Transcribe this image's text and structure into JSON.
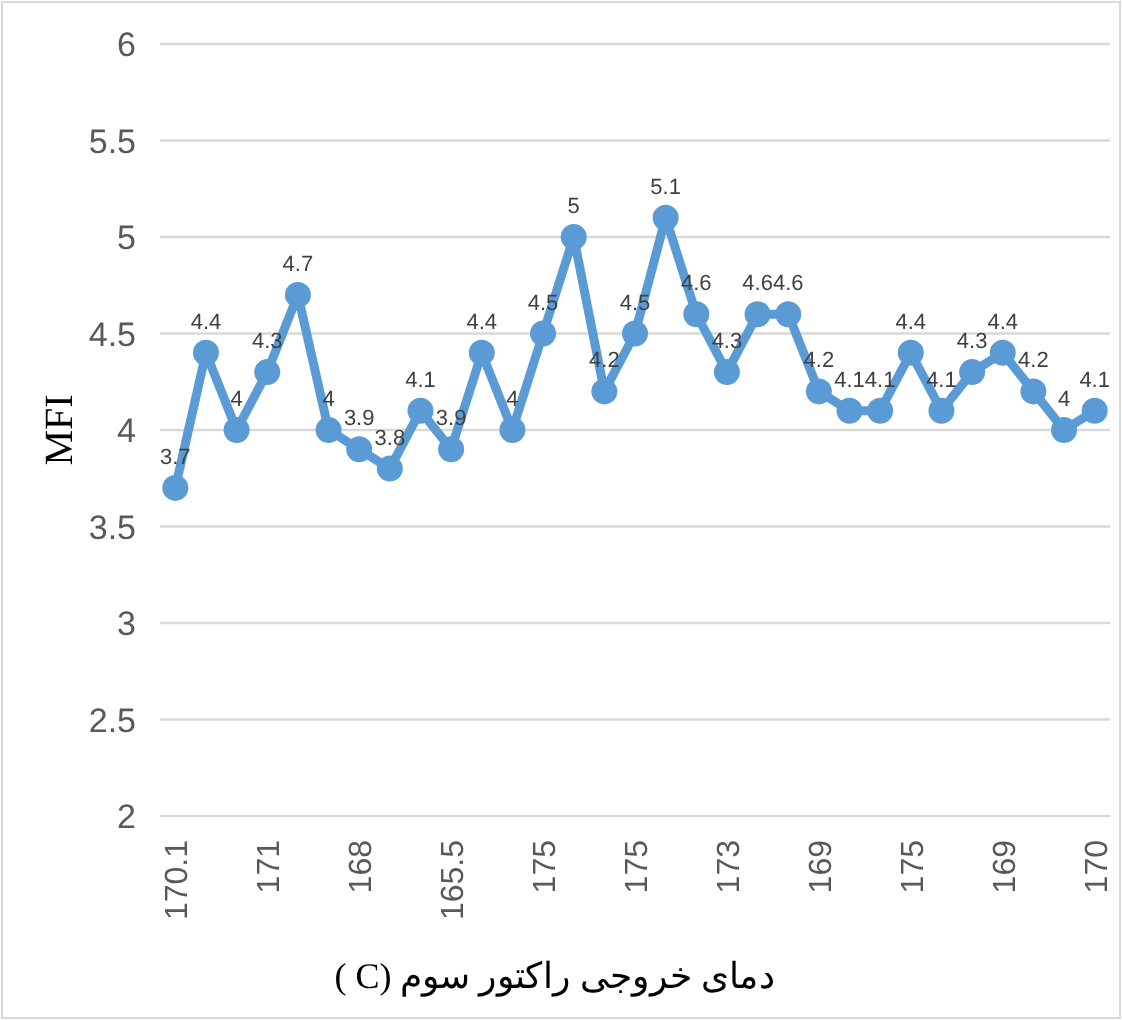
{
  "chart_data": {
    "type": "line",
    "xlabel": "دمای خروجی راکتور سوم (C )",
    "ylabel": "MFI",
    "categories": [
      "170.1",
      null,
      null,
      "171",
      null,
      null,
      "168",
      null,
      null,
      "165.5",
      null,
      null,
      "175",
      null,
      null,
      "175",
      null,
      null,
      "173",
      null,
      null,
      "169",
      null,
      null,
      "175",
      null,
      null,
      "169",
      null,
      null,
      "170"
    ],
    "series": [
      {
        "color": "#5b9bd5",
        "values": [
          3.7,
          4.4,
          4,
          4.3,
          4.7,
          4,
          3.9,
          3.8,
          4.1,
          3.9,
          4.4,
          4,
          4.5,
          5,
          4.2,
          4.5,
          5.1,
          4.6,
          4.3,
          4.6,
          4.6,
          4.2,
          4.1,
          4.1,
          4.4,
          4.1,
          4.3,
          4.4,
          4.2,
          4,
          4.1
        ]
      }
    ],
    "ylim": [
      2,
      6
    ],
    "yticks": [
      2,
      2.5,
      3,
      3.5,
      4,
      4.5,
      5,
      5.5,
      6
    ],
    "grid": "y",
    "marker": "circle",
    "data_labels": true
  }
}
